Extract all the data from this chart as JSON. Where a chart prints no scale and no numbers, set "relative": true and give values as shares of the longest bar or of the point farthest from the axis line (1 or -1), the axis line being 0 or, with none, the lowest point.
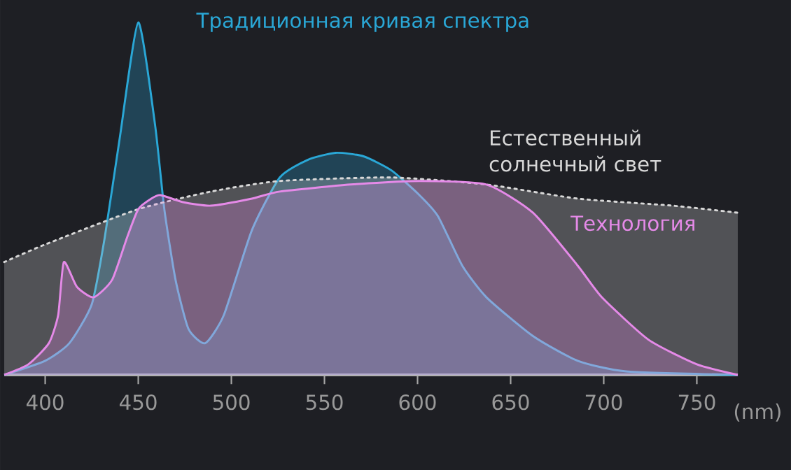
{
  "chart_data": {
    "type": "area",
    "relative": true,
    "xlabel": "(nm)",
    "xlim": [
      378,
      772
    ],
    "xticks": [
      400,
      450,
      500,
      550,
      600,
      650,
      700,
      750
    ],
    "legend": false,
    "series": [
      {
        "name": "Традиционная кривая спектра",
        "color": "#2aa7d6",
        "x": [
          378,
          400,
          413,
          425,
          432,
          440,
          450,
          459,
          464,
          470,
          477,
          486,
          496,
          511,
          526,
          541,
          556,
          571,
          586,
          601,
          611,
          624,
          637,
          662,
          686,
          712,
          772
        ],
        "values": [
          0,
          0.04,
          0.09,
          0.2,
          0.39,
          0.67,
          1.0,
          0.71,
          0.47,
          0.27,
          0.13,
          0.09,
          0.17,
          0.41,
          0.56,
          0.61,
          0.63,
          0.62,
          0.58,
          0.51,
          0.45,
          0.31,
          0.22,
          0.11,
          0.04,
          0.01,
          0
        ]
      },
      {
        "name": "Естественный солнечный свет",
        "color": "#d8d8d8",
        "line_style": "dotted",
        "x": [
          378,
          400,
          450,
          489,
          526,
          586,
          637,
          686,
          737,
          772
        ],
        "values": [
          0.32,
          0.37,
          0.47,
          0.52,
          0.55,
          0.56,
          0.54,
          0.5,
          0.48,
          0.46
        ]
      },
      {
        "name": "Технология",
        "color": "#e58ae8",
        "x": [
          378,
          391,
          402,
          407,
          410,
          417,
          426,
          436,
          444,
          450,
          457,
          462,
          474,
          489,
          511,
          526,
          564,
          601,
          637,
          662,
          686,
          699,
          724,
          750,
          772
        ],
        "values": [
          0,
          0.03,
          0.09,
          0.17,
          0.32,
          0.25,
          0.22,
          0.27,
          0.39,
          0.47,
          0.5,
          0.51,
          0.49,
          0.48,
          0.5,
          0.52,
          0.54,
          0.55,
          0.54,
          0.46,
          0.31,
          0.22,
          0.1,
          0.03,
          0
        ]
      }
    ]
  }
}
